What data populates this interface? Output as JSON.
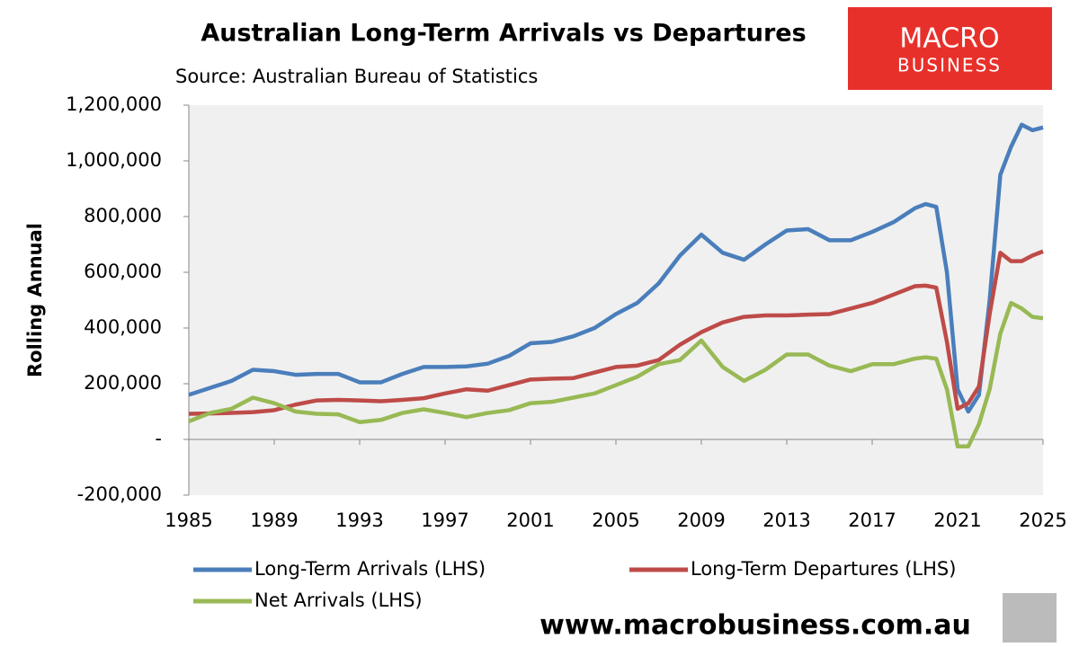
{
  "chart_data": {
    "type": "line",
    "title": "Australian Long-Term Arrivals vs Departures",
    "subtitle": "Source: Australian Bureau of Statistics",
    "y_label": "Rolling Annual",
    "logo": [
      "MACRO",
      "BUSINESS"
    ],
    "footer": "www.macrobusiness.com.au",
    "x": [
      1985,
      1986,
      1987,
      1988,
      1989,
      1990,
      1991,
      1992,
      1993,
      1994,
      1995,
      1996,
      1997,
      1998,
      1999,
      2000,
      2001,
      2002,
      2003,
      2004,
      2005,
      2006,
      2007,
      2008,
      2009,
      2010,
      2011,
      2012,
      2013,
      2014,
      2015,
      2016,
      2017,
      2018,
      2019,
      2019.5,
      2020,
      2020.5,
      2021,
      2021.5,
      2022,
      2022.5,
      2023,
      2023.5,
      2024,
      2024.5,
      2025
    ],
    "series": [
      {
        "name": "Long-Term Arrivals (LHS)",
        "color": "#4a7ebb",
        "values": [
          160000,
          185000,
          210000,
          250000,
          245000,
          232000,
          235000,
          235000,
          205000,
          205000,
          235000,
          260000,
          260000,
          262000,
          272000,
          300000,
          345000,
          350000,
          370000,
          400000,
          450000,
          490000,
          560000,
          660000,
          735000,
          670000,
          645000,
          700000,
          750000,
          755000,
          715000,
          715000,
          745000,
          780000,
          830000,
          845000,
          835000,
          600000,
          180000,
          100000,
          160000,
          500000,
          950000,
          1050000,
          1130000,
          1110000,
          1120000
        ]
      },
      {
        "name": "Long-Term Departures (LHS)",
        "color": "#be4b48",
        "values": [
          92000,
          93000,
          95000,
          98000,
          105000,
          125000,
          140000,
          142000,
          140000,
          137000,
          142000,
          148000,
          165000,
          180000,
          175000,
          195000,
          215000,
          218000,
          220000,
          240000,
          260000,
          265000,
          285000,
          340000,
          385000,
          420000,
          440000,
          445000,
          445000,
          448000,
          450000,
          470000,
          490000,
          520000,
          550000,
          552000,
          545000,
          350000,
          110000,
          130000,
          190000,
          450000,
          670000,
          640000,
          640000,
          660000,
          675000
        ]
      },
      {
        "name": "Net Arrivals (LHS)",
        "color": "#98b954",
        "values": [
          65000,
          95000,
          110000,
          150000,
          130000,
          100000,
          92000,
          90000,
          62000,
          70000,
          95000,
          108000,
          95000,
          80000,
          95000,
          105000,
          130000,
          135000,
          150000,
          165000,
          195000,
          225000,
          270000,
          285000,
          355000,
          260000,
          210000,
          250000,
          305000,
          305000,
          265000,
          245000,
          270000,
          270000,
          290000,
          295000,
          290000,
          180000,
          -25000,
          -25000,
          55000,
          180000,
          380000,
          490000,
          470000,
          440000,
          435000
        ]
      }
    ],
    "xlim": [
      1985,
      2025
    ],
    "xticks": [
      1985,
      1989,
      1993,
      1997,
      2001,
      2005,
      2009,
      2013,
      2017,
      2021,
      2025
    ],
    "ylim": [
      -200000,
      1200000
    ],
    "yticks": [
      {
        "value": -200000,
        "label": "-200,000"
      },
      {
        "value": 0,
        "label": "-"
      },
      {
        "value": 200000,
        "label": "200,000"
      },
      {
        "value": 400000,
        "label": "400,000"
      },
      {
        "value": 600000,
        "label": "600,000"
      },
      {
        "value": 800000,
        "label": "800,000"
      },
      {
        "value": 1000000,
        "label": "1,000,000"
      },
      {
        "value": 1200000,
        "label": "1,200,000"
      }
    ]
  }
}
